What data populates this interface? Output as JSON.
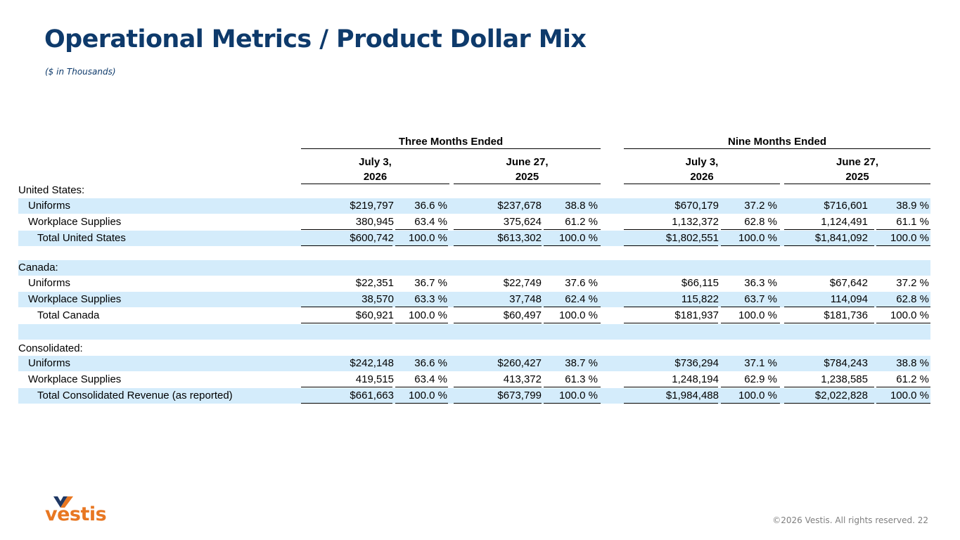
{
  "title": "Operational Metrics / Product Dollar Mix",
  "subtitle": "($ in Thousands)",
  "headers": {
    "three_months": "Three Months Ended",
    "nine_months": "Nine Months Ended",
    "col1_a": "July 3,",
    "col1_b": "2026",
    "col2_a": "June 27,",
    "col2_b": "2025",
    "col3_a": "July 3,",
    "col3_b": "2026",
    "col4_a": "June 27,",
    "col4_b": "2025"
  },
  "rows": [
    {
      "label": "United States:",
      "indent": 0,
      "shade": false,
      "values": [
        "",
        "",
        "",
        "",
        "",
        "",
        "",
        ""
      ],
      "underline": false
    },
    {
      "label": "Uniforms",
      "indent": 1,
      "shade": true,
      "values": [
        "$219,797",
        "36.6 %",
        "$237,678",
        "38.8 %",
        "$670,179",
        "37.2 %",
        "$716,601",
        "38.9 %"
      ],
      "underline": false
    },
    {
      "label": "Workplace Supplies",
      "indent": 1,
      "shade": false,
      "values": [
        "380,945",
        "63.4 %",
        "375,624",
        "61.2 %",
        "1,132,372",
        "62.8 %",
        "1,124,491",
        "61.1 %"
      ],
      "underline": true
    },
    {
      "label": "Total United States",
      "indent": 2,
      "shade": true,
      "values": [
        "$600,742",
        "100.0 %",
        "$613,302",
        "100.0 %",
        "$1,802,551",
        "100.0 %",
        "$1,841,092",
        "100.0 %"
      ],
      "underline": true
    },
    {
      "label": "",
      "indent": 0,
      "shade": false,
      "values": [
        "",
        "",
        "",
        "",
        "",
        "",
        "",
        ""
      ],
      "underline": false
    },
    {
      "label": "Canada:",
      "indent": 0,
      "shade": true,
      "values": [
        "",
        "",
        "",
        "",
        "",
        "",
        "",
        ""
      ],
      "underline": false
    },
    {
      "label": "Uniforms",
      "indent": 1,
      "shade": false,
      "values": [
        "$22,351",
        "36.7 %",
        "$22,749",
        "37.6 %",
        "$66,115",
        "36.3 %",
        "$67,642",
        "37.2 %"
      ],
      "underline": false
    },
    {
      "label": "Workplace Supplies",
      "indent": 1,
      "shade": true,
      "values": [
        "38,570",
        "63.3 %",
        "37,748",
        "62.4 %",
        "115,822",
        "63.7 %",
        "114,094",
        "62.8 %"
      ],
      "underline": true
    },
    {
      "label": "Total Canada",
      "indent": 2,
      "shade": false,
      "values": [
        "$60,921",
        "100.0 %",
        "$60,497",
        "100.0 %",
        "$181,937",
        "100.0 %",
        "$181,736",
        "100.0 %"
      ],
      "underline": true
    },
    {
      "label": "",
      "indent": 0,
      "shade": true,
      "values": [
        "",
        "",
        "",
        "",
        "",
        "",
        "",
        ""
      ],
      "underline": false
    },
    {
      "label": "Consolidated:",
      "indent": 0,
      "shade": false,
      "values": [
        "",
        "",
        "",
        "",
        "",
        "",
        "",
        ""
      ],
      "underline": false
    },
    {
      "label": "Uniforms",
      "indent": 1,
      "shade": true,
      "values": [
        "$242,148",
        "36.6 %",
        "$260,427",
        "38.7 %",
        "$736,294",
        "37.1 %",
        "$784,243",
        "38.8 %"
      ],
      "underline": false
    },
    {
      "label": "Workplace Supplies",
      "indent": 1,
      "shade": false,
      "values": [
        "419,515",
        "63.4 %",
        "413,372",
        "61.3 %",
        "1,248,194",
        "62.9 %",
        "1,238,585",
        "61.2 %"
      ],
      "underline": true
    },
    {
      "label": "Total Consolidated Revenue (as reported)",
      "indent": 2,
      "shade": true,
      "values": [
        "$661,663",
        "100.0 %",
        "$673,799",
        "100.0 %",
        "$1,984,488",
        "100.0 %",
        "$2,022,828",
        "100.0 %"
      ],
      "underline": true
    }
  ],
  "logo": {
    "word": "vestis",
    "icon": "vestis-chevron-logo-icon",
    "colors": {
      "navy": "#1f3864",
      "orange": "#e87722"
    }
  },
  "footer": "©2026 Vestis. All rights reserved.  22",
  "colors": {
    "title": "#0e3a6b",
    "row_shade": "#d4ecfb"
  }
}
